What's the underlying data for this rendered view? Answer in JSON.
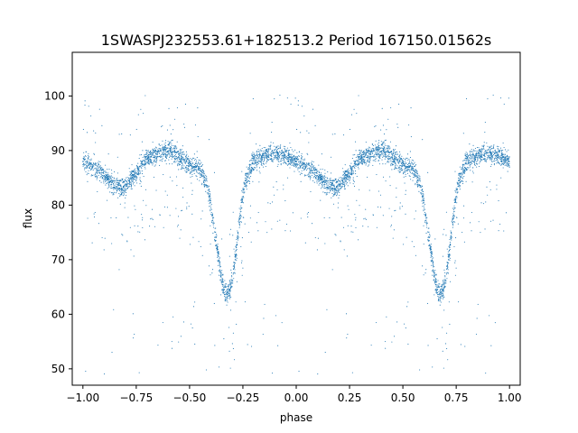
{
  "chart_data": {
    "type": "scatter",
    "title": "1SWASPJ232553.61+182513.2 Period 167150.01562s",
    "xlabel": "phase",
    "ylabel": "flux",
    "xlim": [
      -1.05,
      1.05
    ],
    "ylim": [
      47,
      108
    ],
    "grid": false,
    "legend": "none",
    "x_ticks": [
      -1.0,
      -0.75,
      -0.5,
      -0.25,
      0.0,
      0.25,
      0.5,
      0.75,
      1.0
    ],
    "x_tick_labels": [
      "−1.00",
      "−0.75",
      "−0.50",
      "−0.25",
      "0.00",
      "0.25",
      "0.50",
      "0.75",
      "1.00"
    ],
    "y_ticks": [
      50,
      60,
      70,
      80,
      90,
      100
    ],
    "y_tick_labels": [
      "50",
      "60",
      "70",
      "80",
      "90",
      "100"
    ],
    "point_color": "#1f77b4",
    "series": [
      {
        "curve_phase": [
          0.0,
          0.05,
          0.1,
          0.15,
          0.18,
          0.2,
          0.25,
          0.3,
          0.35,
          0.4,
          0.45,
          0.5,
          0.55,
          0.58,
          0.6,
          0.62,
          0.64,
          0.66,
          0.68,
          0.7,
          0.72,
          0.74,
          0.76,
          0.8,
          0.85,
          0.9,
          0.95,
          1.0
        ],
        "curve_flux": [
          88,
          87,
          85.5,
          83.5,
          83,
          83.5,
          86,
          88.5,
          89.5,
          90,
          89,
          87.5,
          86.5,
          84,
          80,
          74.5,
          69,
          64.5,
          63.5,
          66,
          72,
          79,
          84,
          88,
          89,
          89.5,
          89,
          88
        ]
      }
    ]
  }
}
